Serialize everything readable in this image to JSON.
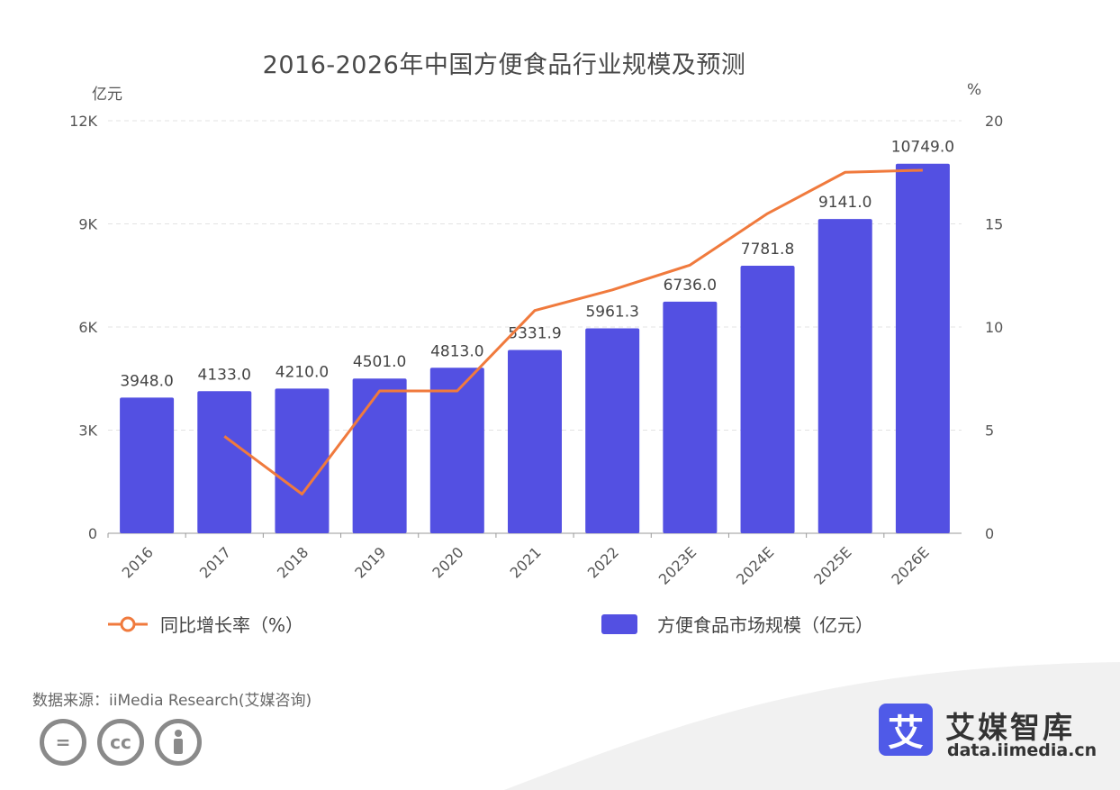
{
  "title": "2016-2026年中国方便食品行业规模及预测",
  "units": {
    "left": "亿元",
    "right": "%"
  },
  "legend": {
    "line_label": "同比增长率（%）",
    "bar_label": "方便食品市场规模（亿元）"
  },
  "colors": {
    "bar": "#5350e2",
    "line": "#f07a3d",
    "grid": "#e3e3e3",
    "axis_text": "#555555"
  },
  "source_text": "数据来源：iiMedia Research(艾媒咨询)",
  "brand": {
    "logo_char": "艾",
    "name": "艾媒智库",
    "url": "data.iimedia.cn"
  },
  "cc_icons": [
    "equals-icon",
    "cc-icon",
    "person-icon"
  ],
  "chart_data": {
    "type": "bar",
    "categories": [
      "2016",
      "2017",
      "2018",
      "2019",
      "2020",
      "2021",
      "2022",
      "2023E",
      "2024E",
      "2025E",
      "2026E"
    ],
    "series": [
      {
        "name": "方便食品市场规模（亿元）",
        "type": "bar",
        "axis": "left",
        "values": [
          3948.0,
          4133.0,
          4210.0,
          4501.0,
          4813.0,
          5331.9,
          5961.3,
          6736.0,
          7781.8,
          9141.0,
          10749.0
        ],
        "labels": [
          "3948.0",
          "4133.0",
          "4210.0",
          "4501.0",
          "4813.0",
          "5331.9",
          "5961.3",
          "6736.0",
          "7781.8",
          "9141.0",
          "10749.0"
        ]
      },
      {
        "name": "同比增长率（%）",
        "type": "line",
        "axis": "right",
        "values": [
          null,
          4.7,
          1.9,
          6.9,
          6.9,
          10.8,
          11.8,
          13.0,
          15.5,
          17.5,
          17.6
        ]
      }
    ],
    "y_left": {
      "ticks": [
        "0",
        "3K",
        "6K",
        "9K",
        "12K"
      ],
      "range": [
        0,
        12000
      ]
    },
    "y_right": {
      "ticks": [
        "0",
        "5",
        "10",
        "15",
        "20"
      ],
      "range": [
        0,
        20
      ]
    },
    "grid": true
  }
}
